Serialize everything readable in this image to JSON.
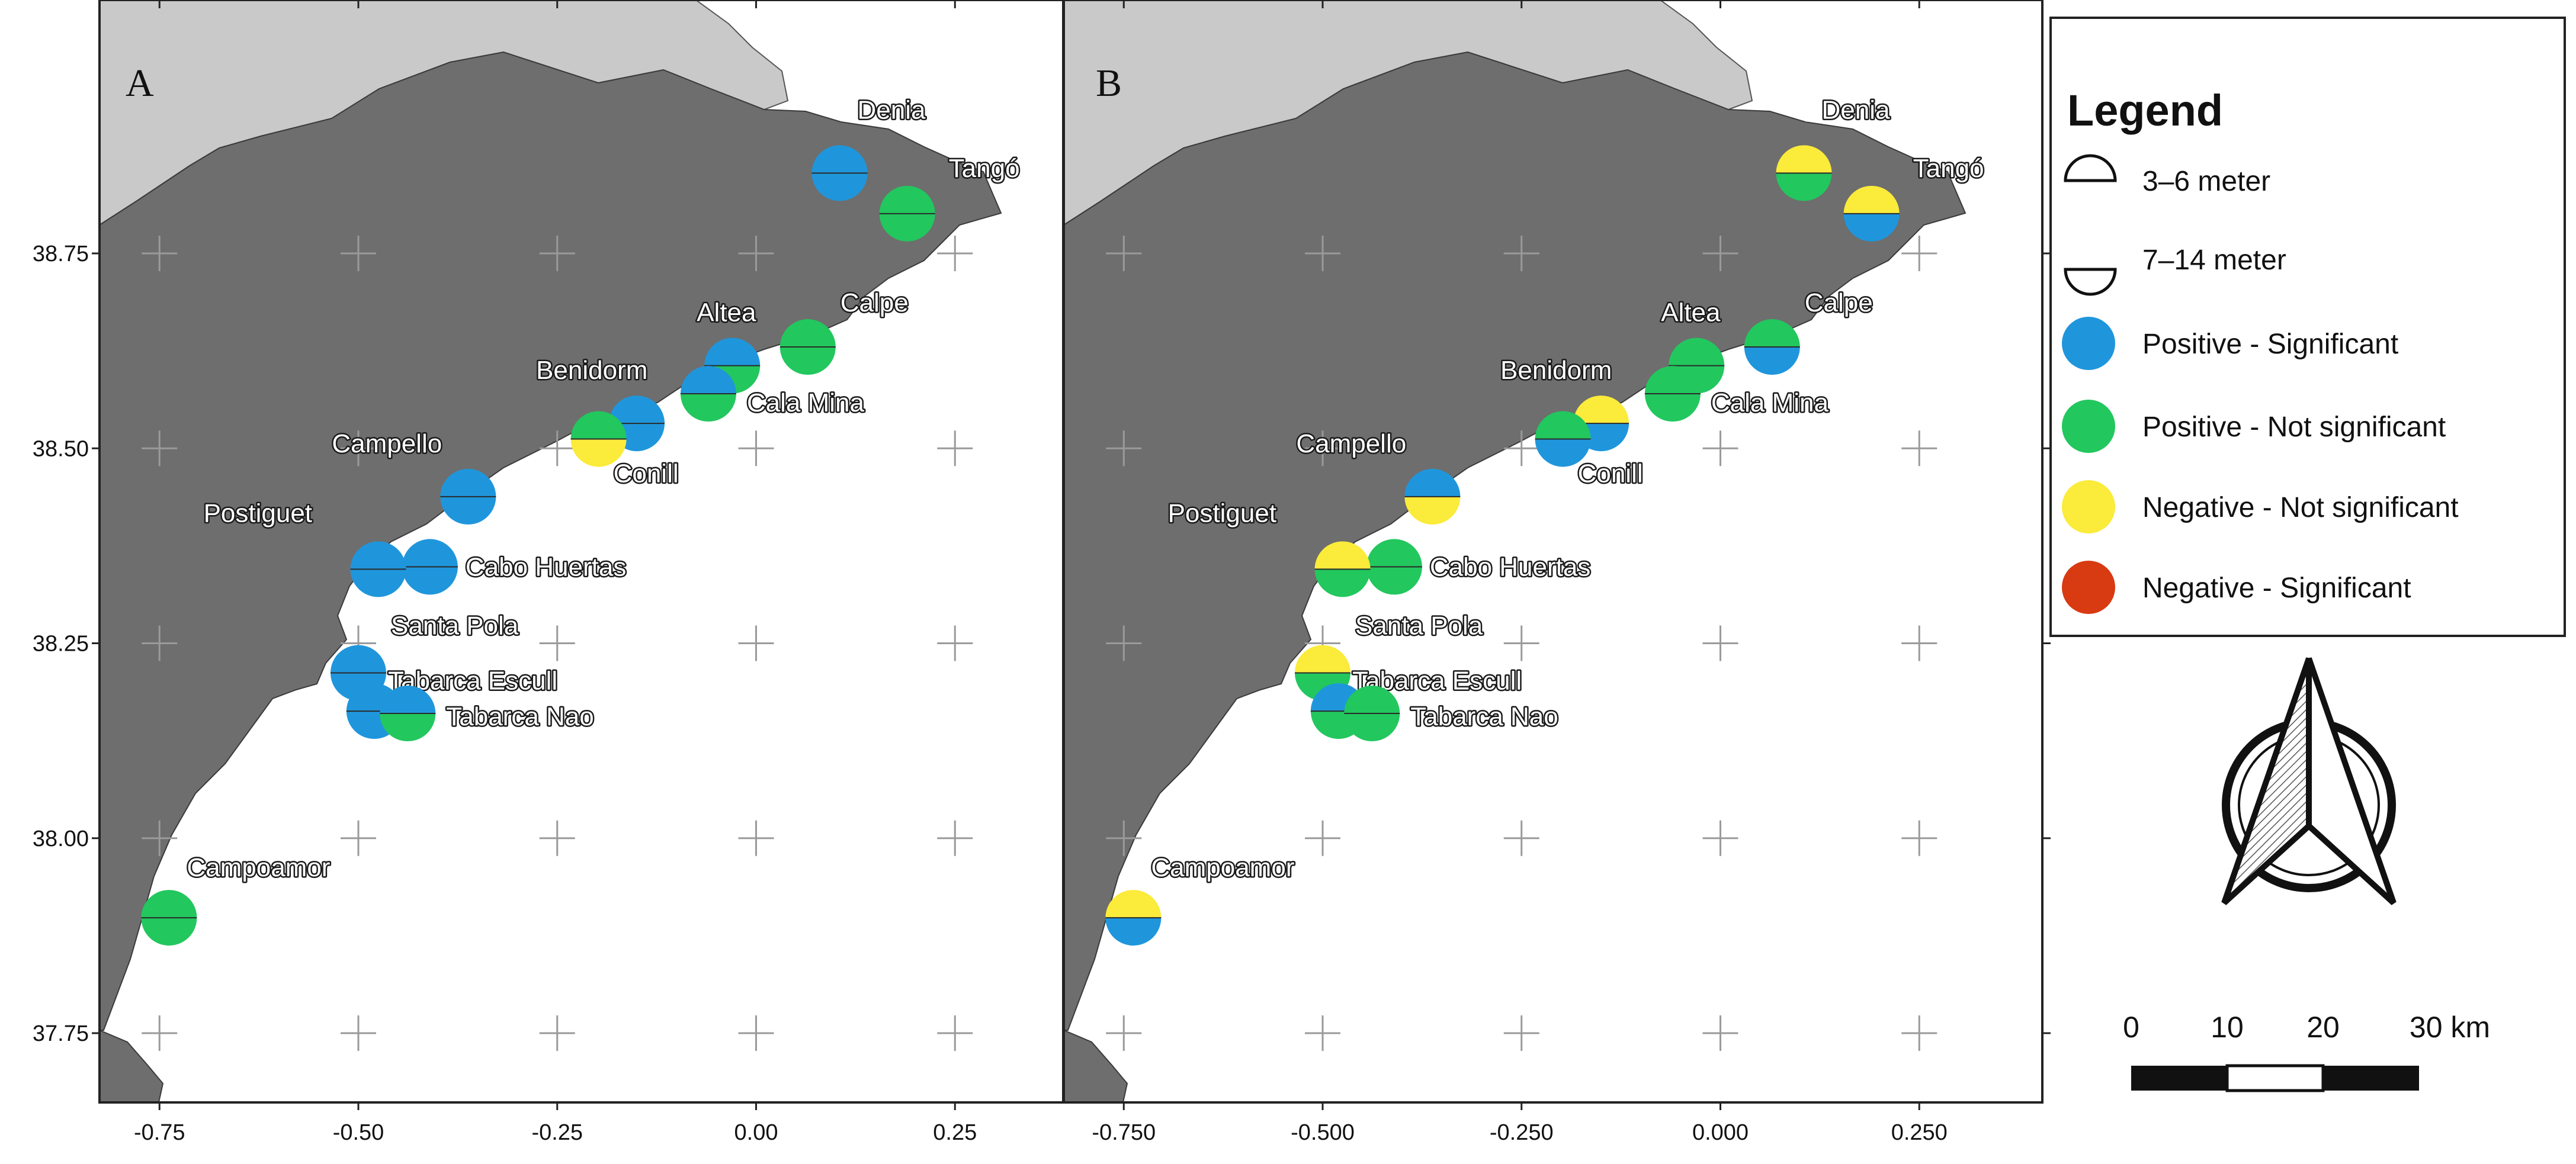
{
  "figure": {
    "panels": [
      {
        "letter": "A",
        "x_ticks": [
          "-0.75",
          "-0.50",
          "-0.25",
          "0.00",
          "0.25"
        ],
        "y_ticks": [
          "37.75",
          "38.00",
          "38.25",
          "38.50",
          "38.75"
        ],
        "sites": [
          {
            "label": "Denia",
            "lon": 0.105,
            "lat": 38.853,
            "upper": "blue",
            "lower": "blue"
          },
          {
            "label": "Tangó",
            "lon": 0.19,
            "lat": 38.801,
            "upper": "green",
            "lower": "green"
          },
          {
            "label": "Calpe",
            "lon": 0.065,
            "lat": 38.63,
            "upper": "green",
            "lower": "green"
          },
          {
            "label": "Altea",
            "lon": -0.03,
            "lat": 38.606,
            "upper": "blue",
            "lower": "green"
          },
          {
            "label": "Cala Mina",
            "lon": -0.06,
            "lat": 38.57,
            "upper": "blue",
            "lower": "green"
          },
          {
            "label": "Benidorm",
            "lon": -0.15,
            "lat": 38.532,
            "upper": "blue",
            "lower": "blue"
          },
          {
            "label": "Conill",
            "lon": -0.198,
            "lat": 38.512,
            "upper": "green",
            "lower": "yellow"
          },
          {
            "label": "Campello",
            "lon": -0.362,
            "lat": 38.438,
            "upper": "blue",
            "lower": "blue"
          },
          {
            "label": "Cabo Huertas",
            "lon": -0.41,
            "lat": 38.348,
            "upper": "blue",
            "lower": "blue"
          },
          {
            "label": "Postiguet",
            "lon": -0.475,
            "lat": 38.345,
            "upper": "blue",
            "lower": "blue"
          },
          {
            "label": "Santa Pola",
            "lon": -0.5,
            "lat": 38.212,
            "upper": "blue",
            "lower": "blue"
          },
          {
            "label": "Tabarca Escull",
            "lon": -0.48,
            "lat": 38.163,
            "upper": "blue",
            "lower": "blue"
          },
          {
            "label": "Tabarca Nao",
            "lon": -0.438,
            "lat": 38.16,
            "upper": "blue",
            "lower": "green"
          },
          {
            "label": "Campoamor",
            "lon": -0.738,
            "lat": 37.898,
            "upper": "green",
            "lower": "green"
          }
        ]
      },
      {
        "letter": "B",
        "x_ticks": [
          "-0.750",
          "-0.500",
          "-0.250",
          "0.000",
          "0.250"
        ],
        "y_ticks": [],
        "sites": [
          {
            "label": "Denia",
            "lon": 0.105,
            "lat": 38.853,
            "upper": "yellow",
            "lower": "green"
          },
          {
            "label": "Tangó",
            "lon": 0.19,
            "lat": 38.801,
            "upper": "yellow",
            "lower": "blue"
          },
          {
            "label": "Calpe",
            "lon": 0.065,
            "lat": 38.63,
            "upper": "green",
            "lower": "blue"
          },
          {
            "label": "Altea",
            "lon": -0.03,
            "lat": 38.606,
            "upper": "green",
            "lower": "green"
          },
          {
            "label": "Cala Mina",
            "lon": -0.06,
            "lat": 38.57,
            "upper": "green",
            "lower": "green"
          },
          {
            "label": "Benidorm",
            "lon": -0.15,
            "lat": 38.532,
            "upper": "yellow",
            "lower": "blue"
          },
          {
            "label": "Conill",
            "lon": -0.198,
            "lat": 38.512,
            "upper": "green",
            "lower": "blue"
          },
          {
            "label": "Campello",
            "lon": -0.362,
            "lat": 38.438,
            "upper": "blue",
            "lower": "yellow"
          },
          {
            "label": "Cabo Huertas",
            "lon": -0.41,
            "lat": 38.348,
            "upper": "green",
            "lower": "green"
          },
          {
            "label": "Postiguet",
            "lon": -0.475,
            "lat": 38.345,
            "upper": "yellow",
            "lower": "green"
          },
          {
            "label": "Santa Pola",
            "lon": -0.5,
            "lat": 38.212,
            "upper": "yellow",
            "lower": "green"
          },
          {
            "label": "Tabarca Escull",
            "lon": -0.48,
            "lat": 38.163,
            "upper": "blue",
            "lower": "green"
          },
          {
            "label": "Tabarca Nao",
            "lon": -0.438,
            "lat": 38.16,
            "upper": "green",
            "lower": "green"
          },
          {
            "label": "Campoamor",
            "lon": -0.738,
            "lat": 37.898,
            "upper": "yellow",
            "lower": "blue"
          }
        ]
      }
    ],
    "right_axis_ticks": [
      "37.75",
      "38.00",
      "38.25",
      "38.50",
      "38.75"
    ]
  },
  "legend": {
    "title": "Legend",
    "depth_items": [
      {
        "shape": "upper-half",
        "label": "3–6 meter"
      },
      {
        "shape": "lower-half",
        "label": "7–14 meter"
      }
    ],
    "trend_items": [
      {
        "color_key": "blue",
        "label": "Positive - Significant"
      },
      {
        "color_key": "green",
        "label": "Positive - Not significant"
      },
      {
        "color_key": "yellow",
        "label": "Negative - Not significant"
      },
      {
        "color_key": "red",
        "label": "Negative - Significant"
      }
    ]
  },
  "scale_bar": {
    "labels": [
      "0",
      "10",
      "20",
      "30 km"
    ]
  },
  "colors": {
    "blue": "#1f96dc",
    "green": "#22c75e",
    "yellow": "#fbeb3a",
    "red": "#d83a12",
    "land_dark": "#6e6e6e",
    "land_light": "#c9c9c9",
    "sea": "#ffffff"
  },
  "icons": {
    "north_arrow": "north-arrow-icon"
  }
}
